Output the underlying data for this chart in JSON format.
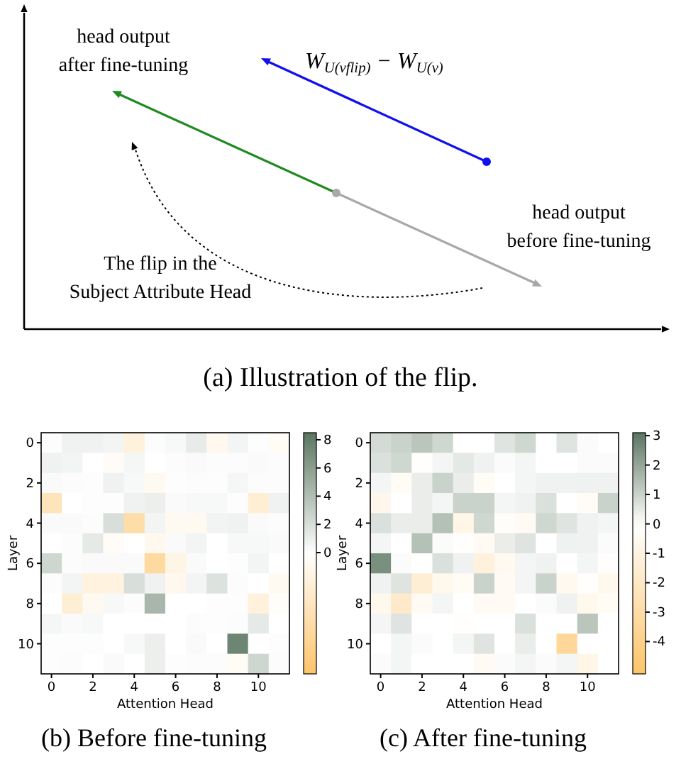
{
  "chart_data": [
    {
      "type": "other",
      "title": "(a) Illustration of the flip.",
      "annotations": [
        "head output after fine-tuning",
        "W$_{U(v}$$_{flip}$$_{)}$ − W$_{U(v)}$",
        "head output before fine-tuning",
        "The flip in the Subject Attribute Head"
      ]
    },
    {
      "type": "heatmap",
      "title": "(b) Before fine-tuning",
      "xlabel": "Attention Head",
      "ylabel": "Layer",
      "categories": [
        "0",
        null,
        "2",
        null,
        "4",
        null,
        "6",
        null,
        "8",
        null,
        "10",
        null
      ],
      "y_categories": [
        "0",
        null,
        "2",
        null,
        "4",
        null,
        "6",
        null,
        "8",
        null,
        "10",
        null
      ],
      "clim": [
        -8.6,
        8.5
      ],
      "cticks": [
        0,
        2,
        4,
        6,
        8
      ],
      "cells": [
        [
          0.2,
          0.8,
          0.8,
          0.6,
          -2,
          0.2,
          0.4,
          1.2,
          -1,
          0.6,
          0.1,
          -0.5
        ],
        [
          0.8,
          0.6,
          0,
          -0.4,
          0.5,
          0,
          0.2,
          0.3,
          0.2,
          0.2,
          0.3,
          0.2
        ],
        [
          0.3,
          0.2,
          0.1,
          0.8,
          0.4,
          -0.8,
          0.1,
          0.2,
          0.1,
          0.5,
          0.2,
          0.2
        ],
        [
          -4,
          0,
          0.1,
          0.1,
          0.8,
          1,
          0.3,
          0.4,
          0.4,
          0.1,
          -2.5,
          0.8
        ],
        [
          0.3,
          0.3,
          0.2,
          2,
          -5,
          0.6,
          -0.8,
          -0.8,
          0.7,
          0.8,
          0.3,
          0.2
        ],
        [
          0,
          0.2,
          1.3,
          -0.4,
          0,
          -1,
          0.3,
          0.6,
          0,
          0.4,
          0.4,
          0.3
        ],
        [
          2.5,
          0.2,
          0.3,
          0.3,
          0.3,
          -5.5,
          -1.5,
          0.3,
          0,
          0.1,
          0.6,
          0
        ],
        [
          0.2,
          0.6,
          -1.8,
          -1.8,
          2,
          0.8,
          -1,
          0.6,
          1.8,
          0.2,
          0,
          -0.8
        ],
        [
          0,
          -2.5,
          -0.8,
          0.4,
          0.2,
          4.5,
          0,
          0,
          0.1,
          0.1,
          -2,
          -0.3
        ],
        [
          0.5,
          0.3,
          0.4,
          0,
          0,
          0,
          0,
          0.2,
          0.1,
          0.2,
          1.3,
          0
        ],
        [
          0.1,
          0.1,
          0.1,
          0,
          0.4,
          1,
          0,
          0.3,
          0,
          7.5,
          0,
          0.1
        ],
        [
          0.1,
          0.2,
          0,
          0.3,
          0,
          1,
          0.1,
          0.2,
          0.2,
          -0.6,
          2.5,
          0.2
        ]
      ]
    },
    {
      "type": "heatmap",
      "title": "(c) After fine-tuning",
      "xlabel": "Attention Head",
      "ylabel": "Layer",
      "categories": [
        "0",
        null,
        "2",
        null,
        "4",
        null,
        "6",
        null,
        "8",
        null,
        "10",
        null
      ],
      "y_categories": [
        "0",
        null,
        "2",
        null,
        "4",
        null,
        "6",
        null,
        "8",
        null,
        "10",
        null
      ],
      "clim": [
        -5.1,
        3.1
      ],
      "cticks": [
        -4,
        -3,
        -2,
        -1,
        0,
        1,
        2,
        3
      ],
      "cells": [
        [
          0.8,
          1,
          1.3,
          0.9,
          0,
          0,
          0.6,
          0.9,
          0,
          0.6,
          0.1,
          0
        ],
        [
          0.7,
          0.9,
          -0.1,
          0.2,
          0.5,
          0.3,
          0.1,
          0.2,
          0,
          0,
          0.1,
          0.1
        ],
        [
          0.2,
          -0.3,
          0.4,
          1,
          0.4,
          -0.3,
          0,
          0.2,
          0.3,
          0.3,
          0.3,
          0.3
        ],
        [
          -0.7,
          0,
          0.4,
          0.2,
          1,
          1,
          0.2,
          0.3,
          0.7,
          0,
          -0.3,
          1
        ],
        [
          0.7,
          0.4,
          0.4,
          1.4,
          -0.8,
          0.9,
          -0.2,
          -0.4,
          0.9,
          0.6,
          0.3,
          0.2
        ],
        [
          0.2,
          0,
          1.4,
          0.1,
          -0.1,
          -0.4,
          0.4,
          0.6,
          0,
          0.3,
          0.3,
          0.1
        ],
        [
          2.5,
          0.1,
          0,
          0.7,
          0.3,
          -1.2,
          -0.5,
          0.2,
          0.3,
          0,
          0.2,
          -0.1
        ],
        [
          0.3,
          0.6,
          -1.5,
          -0.6,
          -0.3,
          1,
          -0.4,
          0.2,
          1,
          -0.5,
          -0.1,
          -0.6
        ],
        [
          -0.6,
          -1.8,
          -0.4,
          0.2,
          0,
          -0.4,
          -0.4,
          0,
          0.1,
          0.3,
          -0.6,
          -0.3
        ],
        [
          0.2,
          0.6,
          0,
          0,
          -0.1,
          0,
          0,
          0.7,
          0,
          0,
          1.3,
          0
        ],
        [
          0,
          0.2,
          0.1,
          0,
          0.2,
          0.6,
          0,
          0.4,
          0,
          -3.5,
          0,
          0
        ],
        [
          0.1,
          0.2,
          0,
          0,
          0,
          -0.4,
          0.1,
          0.2,
          0.1,
          0.2,
          -0.8,
          0
        ]
      ]
    }
  ]
}
